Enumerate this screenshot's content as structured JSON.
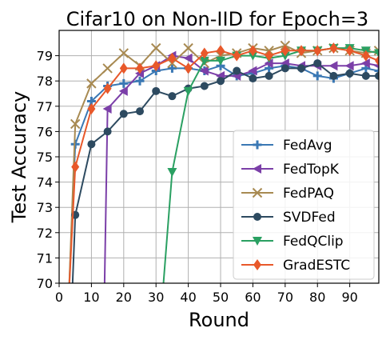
{
  "chart_data": {
    "type": "line",
    "title": "Cifar10 on Non-IID for Epoch=3",
    "xlabel": "Round",
    "ylabel": "Test Accuracy",
    "xlim": [
      0,
      99
    ],
    "ylim": [
      70,
      80
    ],
    "xticks": [
      0,
      10,
      20,
      30,
      40,
      50,
      60,
      70,
      80,
      90
    ],
    "yticks": [
      70,
      71,
      72,
      73,
      74,
      75,
      76,
      77,
      78,
      79
    ],
    "grid": true,
    "legend_position": "lower-right",
    "series": [
      {
        "name": "FedAvg",
        "color": "#3a78b4",
        "marker": "plus",
        "points": [
          [
            3,
            69.5
          ],
          [
            5,
            75.5
          ],
          [
            10,
            77.2
          ],
          [
            15,
            77.8
          ],
          [
            20,
            77.9
          ],
          [
            25,
            78.0
          ],
          [
            30,
            78.4
          ],
          [
            35,
            78.5
          ],
          [
            40,
            78.5
          ],
          [
            45,
            78.4
          ],
          [
            50,
            78.6
          ],
          [
            55,
            78.2
          ],
          [
            60,
            78.3
          ],
          [
            65,
            78.5
          ],
          [
            70,
            78.6
          ],
          [
            75,
            78.5
          ],
          [
            80,
            78.2
          ],
          [
            85,
            78.1
          ],
          [
            90,
            78.3
          ],
          [
            95,
            78.5
          ],
          [
            99,
            78.4
          ]
        ]
      },
      {
        "name": "FedTopK",
        "color": "#7b3fa8",
        "marker": "triangle-left",
        "points": [
          [
            14,
            69.5
          ],
          [
            15,
            76.9
          ],
          [
            20,
            77.6
          ],
          [
            25,
            78.3
          ],
          [
            30,
            78.6
          ],
          [
            35,
            79.0
          ],
          [
            40,
            78.9
          ],
          [
            45,
            78.4
          ],
          [
            50,
            78.2
          ],
          [
            55,
            78.2
          ],
          [
            60,
            78.4
          ],
          [
            65,
            78.7
          ],
          [
            70,
            78.7
          ],
          [
            75,
            78.6
          ],
          [
            80,
            78.6
          ],
          [
            85,
            78.6
          ],
          [
            90,
            78.6
          ],
          [
            95,
            78.7
          ],
          [
            99,
            78.6
          ]
        ]
      },
      {
        "name": "FedPAQ",
        "color": "#a88a52",
        "marker": "x",
        "points": [
          [
            3,
            69.5
          ],
          [
            5,
            76.3
          ],
          [
            10,
            77.9
          ],
          [
            15,
            78.5
          ],
          [
            20,
            79.1
          ],
          [
            25,
            78.6
          ],
          [
            30,
            79.3
          ],
          [
            35,
            78.7
          ],
          [
            40,
            79.3
          ],
          [
            45,
            78.7
          ],
          [
            50,
            79.0
          ],
          [
            55,
            79.1
          ],
          [
            60,
            79.3
          ],
          [
            65,
            79.2
          ],
          [
            70,
            79.4
          ],
          [
            75,
            79.1
          ],
          [
            80,
            79.2
          ],
          [
            85,
            79.3
          ],
          [
            90,
            79.2
          ],
          [
            95,
            79.1
          ],
          [
            99,
            79.2
          ]
        ]
      },
      {
        "name": "SVDFed",
        "color": "#2d4a60",
        "marker": "circle",
        "points": [
          [
            4,
            69.5
          ],
          [
            5,
            72.7
          ],
          [
            10,
            75.5
          ],
          [
            15,
            76.0
          ],
          [
            20,
            76.7
          ],
          [
            25,
            76.8
          ],
          [
            30,
            77.6
          ],
          [
            35,
            77.4
          ],
          [
            40,
            77.7
          ],
          [
            45,
            77.8
          ],
          [
            50,
            78.0
          ],
          [
            55,
            78.4
          ],
          [
            60,
            78.1
          ],
          [
            65,
            78.2
          ],
          [
            70,
            78.5
          ],
          [
            75,
            78.5
          ],
          [
            80,
            78.7
          ],
          [
            85,
            78.2
          ],
          [
            90,
            78.3
          ],
          [
            95,
            78.2
          ],
          [
            99,
            78.2
          ]
        ]
      },
      {
        "name": "FedQClip",
        "color": "#2aa062",
        "marker": "triangle-down",
        "points": [
          [
            32,
            69.5
          ],
          [
            35,
            74.4
          ],
          [
            40,
            77.6
          ],
          [
            45,
            78.8
          ],
          [
            50,
            78.8
          ],
          [
            55,
            79.0
          ],
          [
            60,
            79.0
          ],
          [
            65,
            78.9
          ],
          [
            70,
            79.0
          ],
          [
            75,
            79.2
          ],
          [
            80,
            79.2
          ],
          [
            85,
            79.3
          ],
          [
            90,
            79.3
          ],
          [
            95,
            79.2
          ],
          [
            99,
            79.1
          ]
        ]
      },
      {
        "name": "GradESTC",
        "color": "#e8582a",
        "marker": "diamond",
        "points": [
          [
            3,
            69.5
          ],
          [
            5,
            74.6
          ],
          [
            10,
            76.9
          ],
          [
            15,
            77.7
          ],
          [
            20,
            78.5
          ],
          [
            25,
            78.5
          ],
          [
            30,
            78.6
          ],
          [
            35,
            78.9
          ],
          [
            40,
            78.5
          ],
          [
            45,
            79.1
          ],
          [
            50,
            79.2
          ],
          [
            55,
            79.0
          ],
          [
            60,
            79.2
          ],
          [
            65,
            79.0
          ],
          [
            70,
            79.2
          ],
          [
            75,
            79.2
          ],
          [
            80,
            79.2
          ],
          [
            85,
            79.3
          ],
          [
            90,
            79.2
          ],
          [
            95,
            79.0
          ],
          [
            99,
            78.8
          ]
        ]
      }
    ]
  }
}
